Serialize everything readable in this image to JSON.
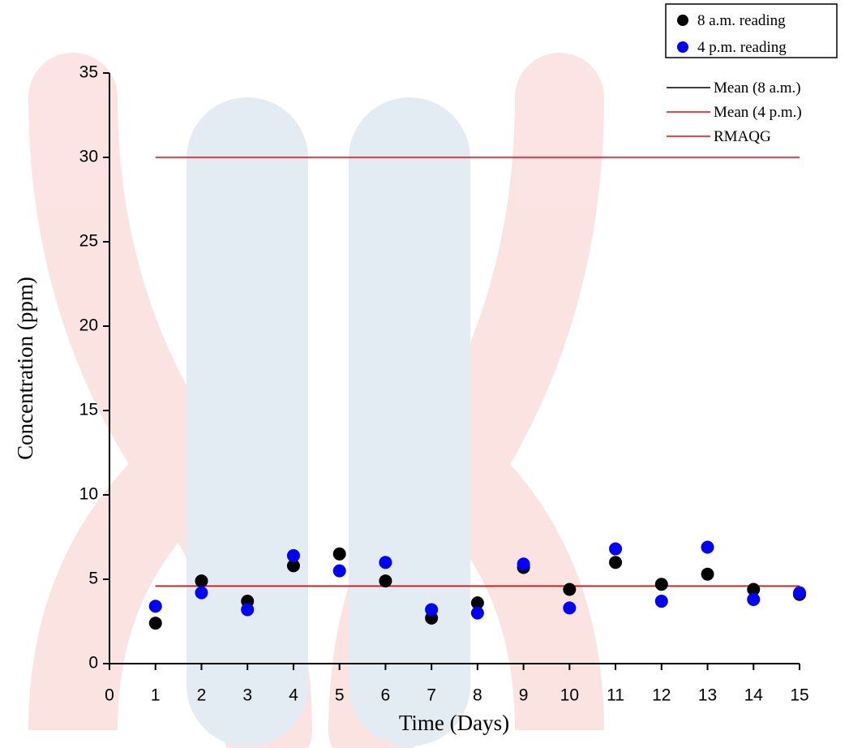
{
  "chart_data": {
    "type": "scatter",
    "x_label": "Time (Days)",
    "y_label": "Concentration (ppm)",
    "xlim": [
      0,
      15
    ],
    "ylim": [
      0,
      35
    ],
    "xticks": [
      0,
      1,
      2,
      3,
      4,
      5,
      6,
      7,
      8,
      9,
      10,
      11,
      12,
      13,
      14,
      15
    ],
    "yticks": [
      0,
      5,
      10,
      15,
      20,
      25,
      30,
      35
    ],
    "series": [
      {
        "name": "8 a.m. reading",
        "type": "scatter",
        "color": "#000000",
        "x": [
          1,
          2,
          3,
          4,
          5,
          6,
          7,
          8,
          9,
          10,
          11,
          12,
          13,
          14,
          15
        ],
        "values": [
          2.4,
          4.9,
          3.7,
          5.8,
          6.5,
          4.9,
          2.7,
          3.6,
          5.7,
          4.4,
          6.0,
          4.7,
          5.3,
          4.4,
          4.1
        ]
      },
      {
        "name": "4 p.m. reading",
        "type": "scatter",
        "color": "#0000ff",
        "x": [
          1,
          2,
          3,
          4,
          5,
          6,
          7,
          8,
          9,
          10,
          11,
          12,
          13,
          14,
          15
        ],
        "values": [
          3.4,
          4.2,
          3.2,
          6.4,
          5.5,
          6.0,
          3.2,
          3.0,
          5.9,
          3.3,
          6.8,
          3.7,
          6.9,
          3.8,
          4.2
        ]
      },
      {
        "name": "Mean (8 a.m.)",
        "type": "line",
        "color": "#000000",
        "x": [
          1,
          15
        ],
        "values": [
          4.6,
          4.6
        ]
      },
      {
        "name": "Mean (4 p.m.)",
        "type": "line",
        "color": "#ff0000",
        "x": [
          1,
          15
        ],
        "values": [
          4.6,
          4.6
        ]
      },
      {
        "name": "RMAQG",
        "type": "line",
        "color": "#ff0000",
        "x": [
          1,
          15
        ],
        "values": [
          30,
          30
        ]
      }
    ]
  }
}
